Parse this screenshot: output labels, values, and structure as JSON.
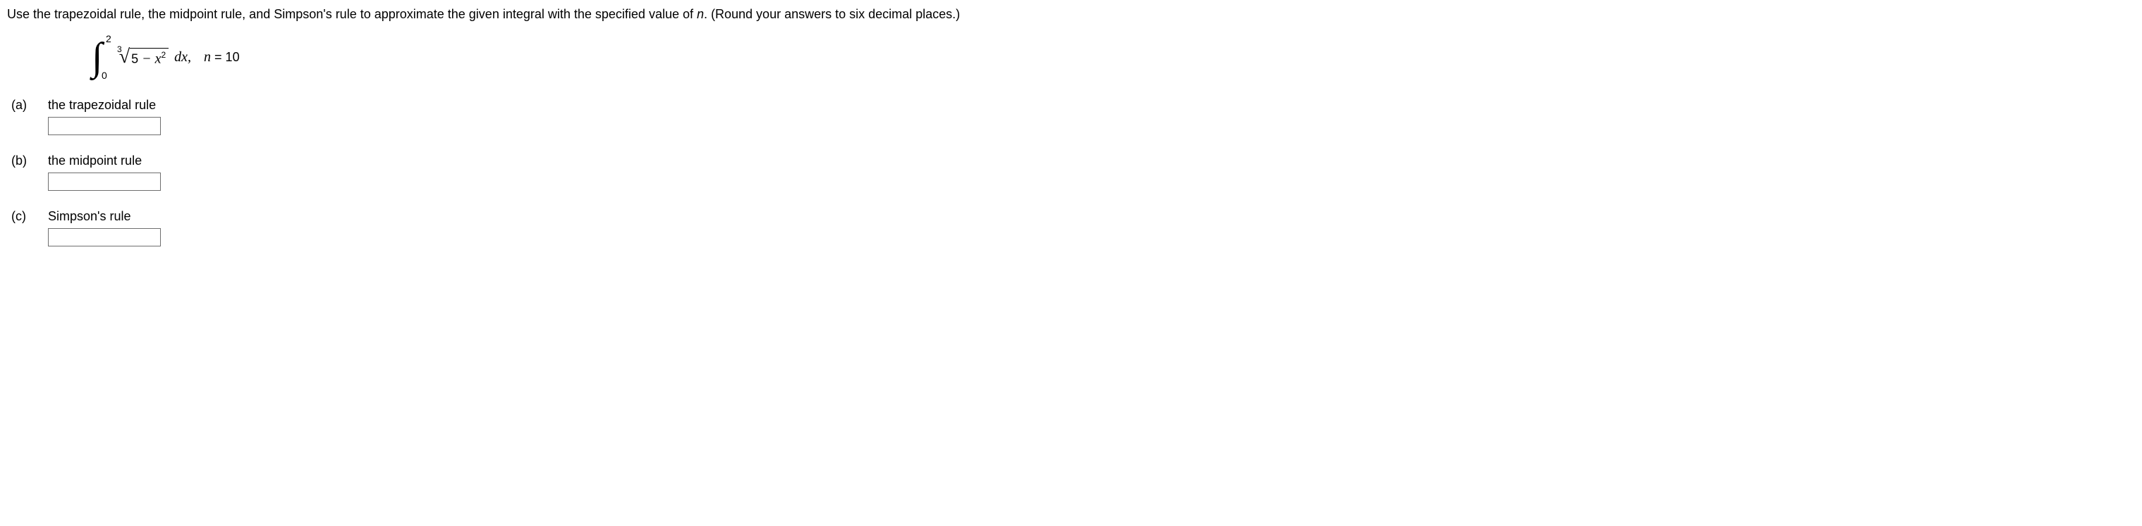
{
  "instruction": {
    "prefix": "Use the trapezoidal rule, the midpoint rule, and Simpson's rule to approximate the given integral with the specified value of ",
    "var": "n",
    "suffix": ". (Round your answers to six decimal places.)"
  },
  "integral": {
    "upper": "2",
    "lower": "0",
    "root_index": "3",
    "radicand_const": "5",
    "radicand_minus": " − ",
    "radicand_var": "x",
    "radicand_exp": "2",
    "dx": " dx,",
    "n_var": "n",
    "n_eq": " = 10"
  },
  "parts": {
    "a": {
      "label": "(a)",
      "text": "the trapezoidal rule"
    },
    "b": {
      "label": "(b)",
      "text": "the midpoint rule"
    },
    "c": {
      "label": "(c)",
      "text": "Simpson's rule"
    }
  }
}
